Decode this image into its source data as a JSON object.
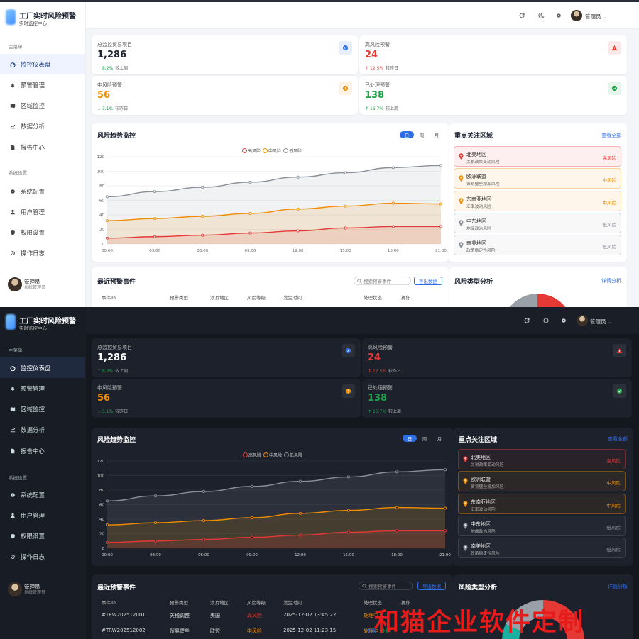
{
  "app": {
    "title": "工厂实时风险预警",
    "subtitle": "实时监控中心"
  },
  "sidebar": {
    "main_section": "主菜单",
    "main_items": [
      {
        "label": "监控仪表盘",
        "icon": "dashboard-icon",
        "active": true
      },
      {
        "label": "预警管理",
        "icon": "bell-icon"
      },
      {
        "label": "区域监控",
        "icon": "map-icon"
      },
      {
        "label": "数据分析",
        "icon": "chart-line-icon"
      },
      {
        "label": "报告中心",
        "icon": "document-icon"
      }
    ],
    "settings_section": "系统设置",
    "settings_items": [
      {
        "label": "系统配置",
        "icon": "gear-icon"
      },
      {
        "label": "用户管理",
        "icon": "user-icon"
      },
      {
        "label": "权限设置",
        "icon": "shield-icon"
      },
      {
        "label": "操作日志",
        "icon": "history-icon"
      }
    ],
    "user": {
      "name": "管理员",
      "role": "系统管理员"
    }
  },
  "header": {
    "user": "管理员"
  },
  "stats": [
    {
      "label": "总监控贸易项目",
      "value": "1,286",
      "delta": "8.2%",
      "direction": "up",
      "compare": "较上周",
      "color": "#1f2430",
      "delta_color": "#1ea34a",
      "icon": "globe-icon",
      "icon_color": "#2f6fe6"
    },
    {
      "label": "高风险预警",
      "value": "24",
      "delta": "12.5%",
      "direction": "up",
      "compare": "较昨日",
      "color": "#e53935",
      "delta_color": "#e53935",
      "icon": "warning-icon",
      "icon_color": "#e53935"
    },
    {
      "label": "中风险预警",
      "value": "56",
      "delta": "3.1%",
      "direction": "down",
      "compare": "较昨日",
      "color": "#f08c00",
      "delta_color": "#1ea34a",
      "icon": "alert-circle-icon",
      "icon_color": "#f08c00"
    },
    {
      "label": "已处理预警",
      "value": "138",
      "delta": "16.7%",
      "direction": "up",
      "compare": "较上周",
      "color": "#1ea34a",
      "delta_color": "#1ea34a",
      "icon": "check-circle-icon",
      "icon_color": "#1ea34a"
    }
  ],
  "trend": {
    "title": "风险趋势监控",
    "tabs": [
      "日",
      "周",
      "月"
    ],
    "active_tab": "日"
  },
  "chart_data": {
    "type": "area",
    "x": [
      "00:00",
      "03:00",
      "06:00",
      "09:00",
      "12:00",
      "15:00",
      "18:00",
      "21:00"
    ],
    "series": [
      {
        "name": "高风险",
        "color": "#e53935",
        "values": [
          8,
          10,
          12,
          15,
          18,
          22,
          24,
          24
        ]
      },
      {
        "name": "中风险",
        "color": "#f08c00",
        "values": [
          32,
          35,
          38,
          42,
          48,
          52,
          56,
          55
        ]
      },
      {
        "name": "低风险",
        "color": "#8a9099",
        "values": [
          65,
          72,
          78,
          85,
          92,
          98,
          105,
          108
        ]
      }
    ],
    "ylim": [
      0,
      120
    ],
    "yticks": [
      0,
      20,
      40,
      60,
      80,
      100,
      120
    ],
    "legend": "top-center",
    "grid": true
  },
  "regions": {
    "title": "重点关注区域",
    "link": "查看全部",
    "items": [
      {
        "name": "北美地区",
        "desc": "关税政策变动风险",
        "level": "高风险",
        "color": "#e53935"
      },
      {
        "name": "欧洲联盟",
        "desc": "贸易壁垒增加风险",
        "level": "中风险",
        "color": "#f08c00"
      },
      {
        "name": "东南亚地区",
        "desc": "汇率波动风险",
        "level": "中风险",
        "color": "#f08c00"
      },
      {
        "name": "中东地区",
        "desc": "地缘政治风险",
        "level": "低风险",
        "color": "#8a9099"
      },
      {
        "name": "南美地区",
        "desc": "政策稳定性风险",
        "level": "低风险",
        "color": "#8a9099"
      }
    ]
  },
  "events": {
    "title": "最近预警事件",
    "search_placeholder": "搜索预警事件",
    "export": "导出数据",
    "headers": [
      "事件ID",
      "预警类型",
      "涉及地区",
      "风险等级",
      "发生时间",
      "处理状态",
      "操作"
    ],
    "rows": [
      {
        "id": "#TRW202512001",
        "type": "关税调整",
        "region": "美国",
        "level": "高风险",
        "level_color": "#e53935",
        "time": "2025-12-02 13:45:22",
        "status": "处理中",
        "action": ""
      },
      {
        "id": "#TRW202512002",
        "type": "贸易壁垒",
        "region": "欧盟",
        "level": "中风险",
        "level_color": "#f08c00",
        "time": "2025-12-02 11:23:15",
        "status": "处理中",
        "action": "查看"
      }
    ],
    "extra_action": "处理"
  },
  "risk_types": {
    "title": "风险类型分析",
    "link": "详情分析"
  },
  "watermark": "和猫企业软件定制"
}
